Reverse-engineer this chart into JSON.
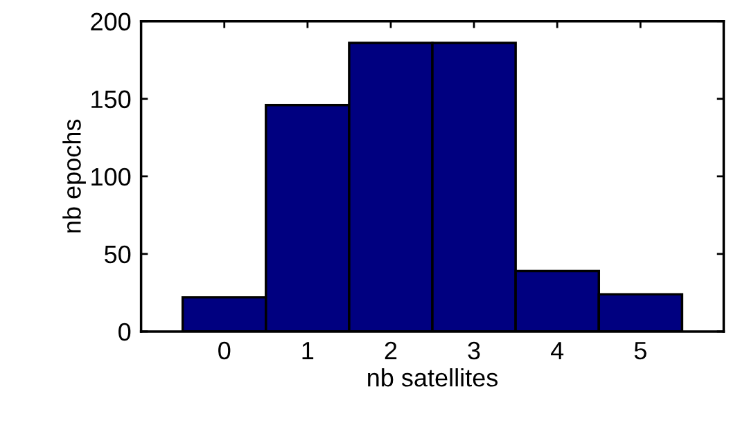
{
  "chart_data": {
    "type": "histogram",
    "xlabel": "nb satellites",
    "ylabel": "nb epochs",
    "bins": [
      -0.5,
      0.5,
      1.5,
      2.5,
      3.5,
      4.5,
      5.5
    ],
    "values": [
      22,
      146,
      186,
      186,
      39,
      24
    ],
    "color": "#000080",
    "xlim": [
      -1,
      6
    ],
    "xticks": [
      0,
      1,
      2,
      3,
      4,
      5
    ],
    "ylim": [
      0,
      200
    ],
    "yticks": [
      0,
      50,
      100,
      150,
      200
    ],
    "grid": false
  }
}
